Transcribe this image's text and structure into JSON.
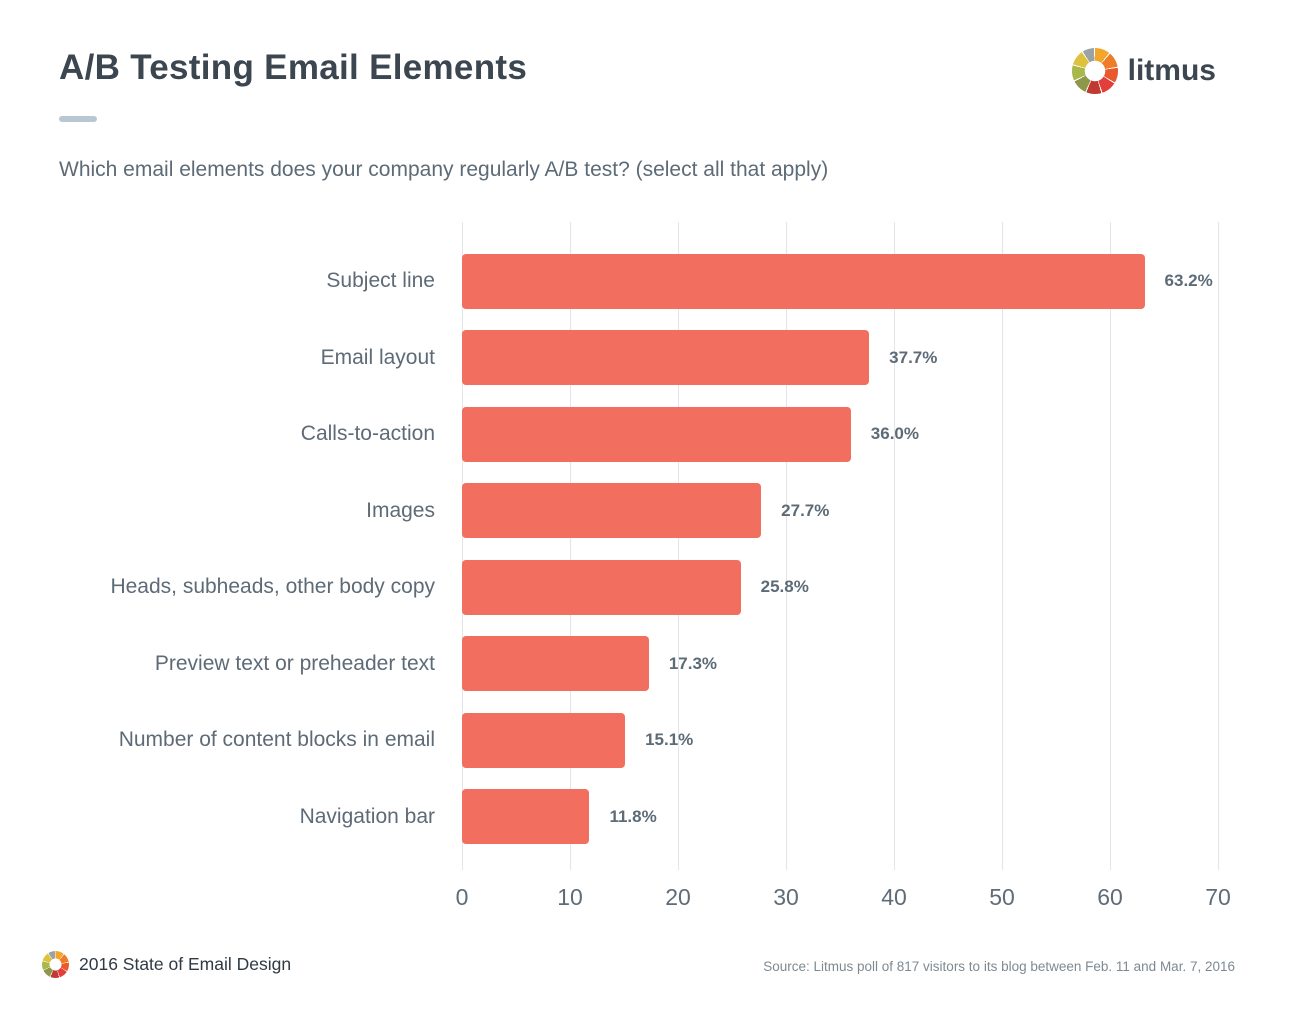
{
  "header": {
    "title": "A/B Testing Email Elements",
    "brand_name": "litmus"
  },
  "question": "Which email elements does your company regularly A/B test? (select all that apply)",
  "chart_data": {
    "type": "bar",
    "orientation": "horizontal",
    "title": "A/B Testing Email Elements",
    "subtitle": "Which email elements does your company regularly A/B test? (select all that apply)",
    "categories": [
      "Subject line",
      "Email layout",
      "Calls-to-action",
      "Images",
      "Heads, subheads, other body copy",
      "Preview text or preheader text",
      "Number of content blocks in email",
      "Navigation bar"
    ],
    "values": [
      63.2,
      37.7,
      36.0,
      27.7,
      25.8,
      17.3,
      15.1,
      11.8
    ],
    "labels": [
      "63.2%",
      "37.7%",
      "36.0%",
      "27.7%",
      "25.8%",
      "17.3%",
      "15.1%",
      "11.8%"
    ],
    "x_ticks": [
      0,
      10,
      20,
      30,
      40,
      50,
      60,
      70
    ],
    "xlim": [
      0,
      70
    ],
    "xlabel": "",
    "ylabel": "",
    "grid": true,
    "legend": "none",
    "bar_color": "#f26f5f"
  },
  "colors": {
    "bar": "#f26f5f",
    "title": "#3b4650",
    "label": "#5e6b77",
    "accent": "#b9c7d2",
    "gridline": "#e3e5e7"
  },
  "footer": {
    "left_text": "2016 State of Email Design",
    "source_text": "Source: Litmus poll of 817 visitors to its blog between Feb. 11 and Mar. 7, 2016"
  }
}
